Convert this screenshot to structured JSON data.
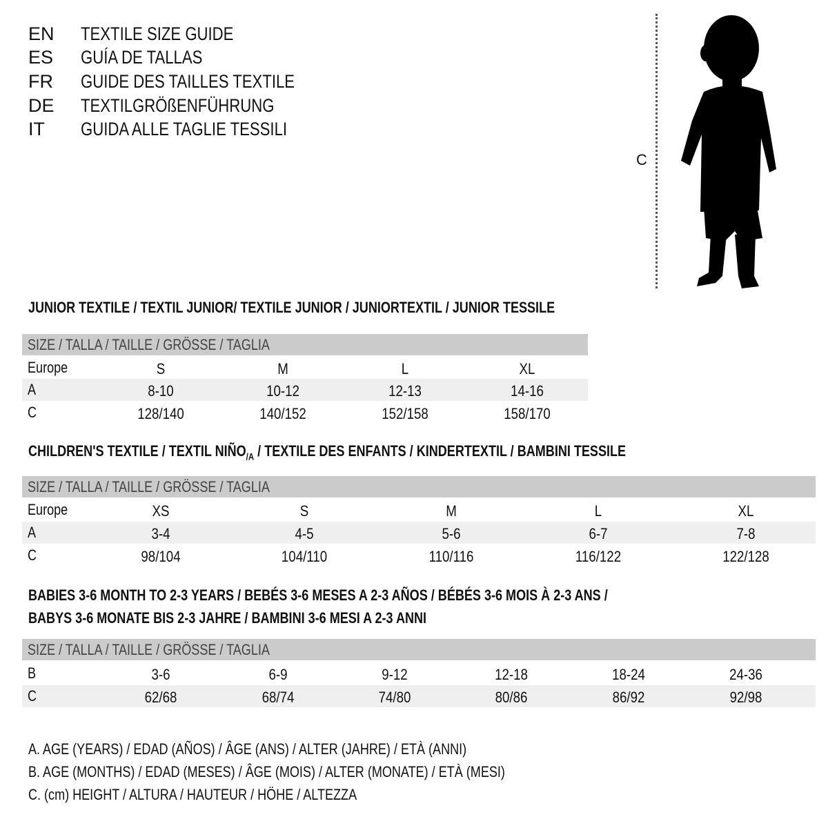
{
  "languages": [
    {
      "code": "EN",
      "title": "TEXTILE SIZE GUIDE"
    },
    {
      "code": "ES",
      "title": "GUÍA DE TALLAS"
    },
    {
      "code": "FR",
      "title": "GUIDE DES TAILLES TEXTILE"
    },
    {
      "code": "DE",
      "title": "TEXTILGRÖßENFÜHRUNG"
    },
    {
      "code": "IT",
      "title": "GUIDA ALLE TAGLIE TESSILI"
    }
  ],
  "figure": {
    "measure_label": "C",
    "icon": "child-silhouette-icon"
  },
  "size_header": "SIZE / TALLA / TAILLE / GRÖSSE / TAGLIA",
  "junior": {
    "title": "JUNIOR TEXTILE / TEXTIL JUNIOR/ TEXTILE JUNIOR / JUNIORTEXTIL / JUNIOR TESSILE",
    "rows": [
      {
        "label": "Europe",
        "values": [
          "S",
          "M",
          "L",
          "XL"
        ]
      },
      {
        "label": "A",
        "values": [
          "8-10",
          "10-12",
          "12-13",
          "14-16"
        ]
      },
      {
        "label": "C",
        "values": [
          "128/140",
          "140/152",
          "152/158",
          "158/170"
        ]
      }
    ]
  },
  "children": {
    "title_pre": "CHILDREN'S TEXTILE / TEXTIL NIÑO",
    "title_sub": "/A",
    "title_post": " / TEXTILE DES ENFANTS / KINDERTEXTIL / BAMBINI TESSILE",
    "rows": [
      {
        "label": "Europe",
        "values": [
          "XS",
          "S",
          "M",
          "L",
          "XL"
        ]
      },
      {
        "label": "A",
        "values": [
          "3-4",
          "4-5",
          "5-6",
          "6-7",
          "7-8"
        ]
      },
      {
        "label": "C",
        "values": [
          "98/104",
          "104/110",
          "110/116",
          "116/122",
          "122/128"
        ]
      }
    ]
  },
  "babies": {
    "title_line1": "BABIES 3-6 MONTH TO 2-3 YEARS / BEBÉS 3-6 MESES A 2-3 AÑOS / BÉBÉS 3-6 MOIS À 2-3 ANS /",
    "title_line2": "BABYS 3-6 MONATE BIS 2-3 JAHRE / BAMBINI 3-6 MESI A 2-3 ANNI",
    "rows": [
      {
        "label": "B",
        "values": [
          "3-6",
          "6-9",
          "9-12",
          "12-18",
          "18-24",
          "24-36"
        ]
      },
      {
        "label": "C",
        "values": [
          "62/68",
          "68/74",
          "74/80",
          "80/86",
          "86/92",
          "92/98"
        ]
      }
    ]
  },
  "legend": [
    "A. AGE (YEARS) / EDAD (AÑOS) / ÂGE (ANS) / ALTER (JAHRE) / ETÀ (ANNI)",
    "B. AGE (MONTHS) / EDAD (MESES) / ÂGE (MOIS) / ALTER (MONATE) / ETÀ (MESI)",
    "C. (cm) HEIGHT / ALTURA / HAUTEUR / HÖHE / ALTEZZA"
  ],
  "colors": {
    "header_bg": "#cbcbcb",
    "alt_row_bg": "#efefef"
  }
}
